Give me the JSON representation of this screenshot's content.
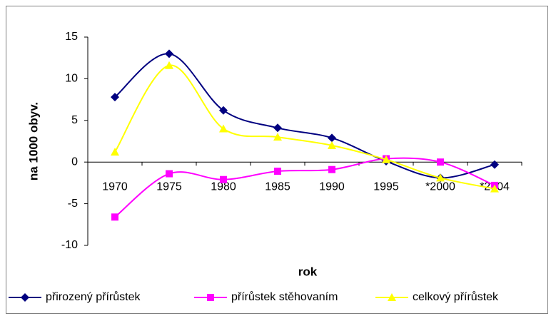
{
  "chart_data": {
    "type": "line",
    "x_label": "rok",
    "y_label": "na 1000 obyv.",
    "categories": [
      "1970",
      "1975",
      "1980",
      "1985",
      "1990",
      "1995",
      "*2000",
      "*2004"
    ],
    "series": [
      {
        "name": "přirozený přírůstek",
        "color": "#000080",
        "marker": "diamond",
        "values": [
          7.8,
          13.0,
          6.2,
          4.1,
          2.9,
          0.1,
          -1.9,
          -0.3
        ]
      },
      {
        "name": "přírůstek stěhovaním",
        "color": "#ff00ff",
        "marker": "square",
        "values": [
          -6.6,
          -1.4,
          -2.1,
          -1.1,
          -0.9,
          0.4,
          0.0,
          -2.8
        ]
      },
      {
        "name": "celkový přírůstek",
        "color": "#ffff00",
        "marker": "triangle",
        "values": [
          1.2,
          11.6,
          4.0,
          3.0,
          2.0,
          0.3,
          -1.9,
          -3.2
        ]
      }
    ],
    "smooth": true,
    "ylim": [
      -10,
      15
    ],
    "yticks": [
      -10,
      -5,
      0,
      5,
      10,
      15
    ],
    "grid": false,
    "legend": "bottom"
  }
}
